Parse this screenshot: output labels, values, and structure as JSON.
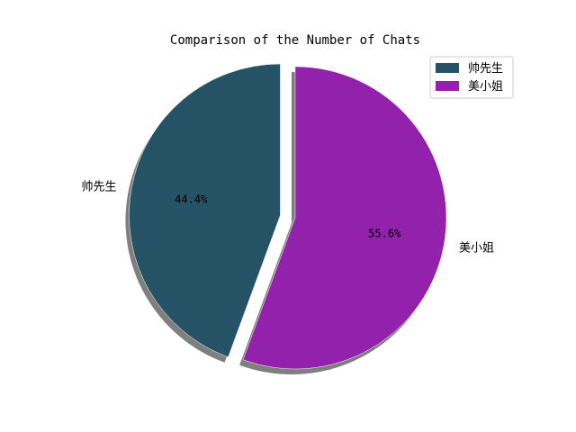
{
  "chart_data": {
    "type": "pie",
    "title": "Comparison of the Number of Chats",
    "labels": [
      "帅先生",
      "美小姐"
    ],
    "values": [
      44.4,
      55.6
    ],
    "percent_labels": [
      "44.4%",
      "55.6%"
    ],
    "colors": [
      "#255265",
      "#9221ac"
    ],
    "explode": [
      true,
      false
    ],
    "shadow": true,
    "start_angle_deg": 90,
    "legend": {
      "placement": "top-right",
      "entries": [
        "帅先生",
        "美小姐"
      ]
    }
  }
}
